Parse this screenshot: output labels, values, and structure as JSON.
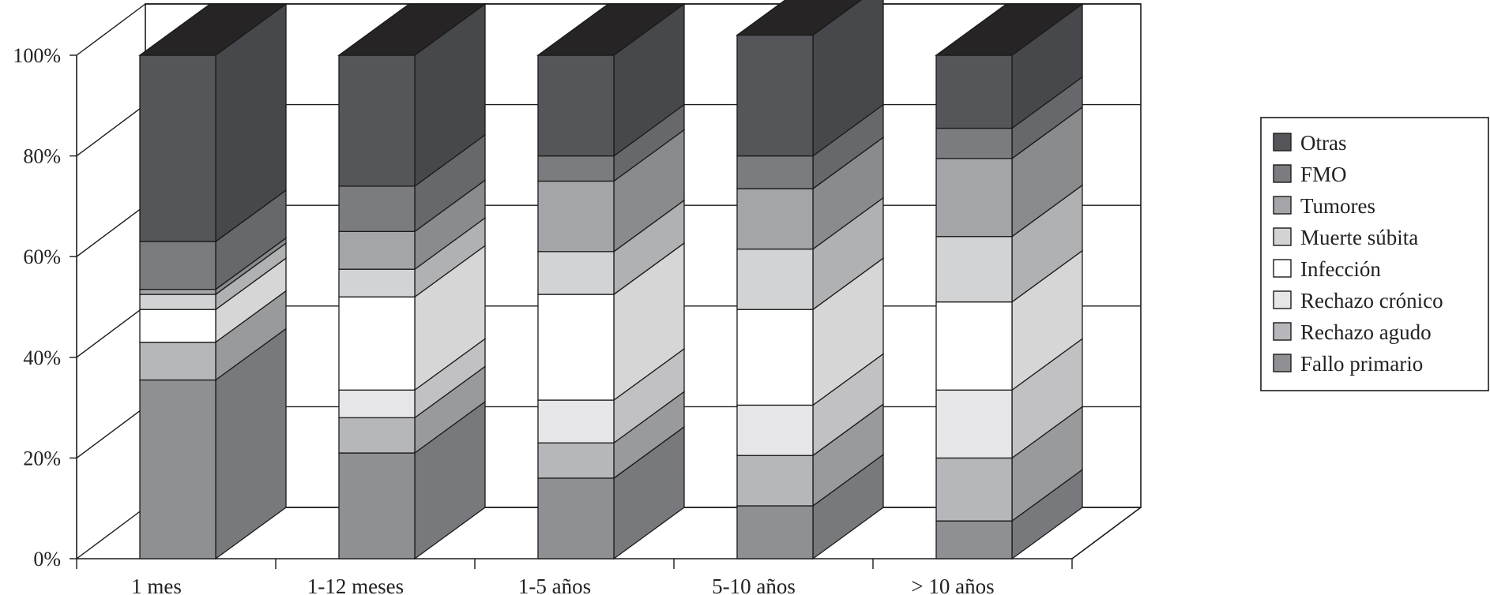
{
  "chart_data": {
    "type": "bar",
    "stacked": true,
    "three_d": true,
    "categories": [
      "1 mes",
      "1-12 meses",
      "1-5 años",
      "5-10 años",
      "> 10 años"
    ],
    "ylim": [
      0,
      100
    ],
    "yticks": [
      0,
      20,
      40,
      60,
      80,
      100
    ],
    "ytick_labels": [
      "0%",
      "20%",
      "40%",
      "60%",
      "80%",
      "100%"
    ],
    "grid": true,
    "legend_position": "right",
    "series": [
      {
        "name": "Fallo primario",
        "color": "#8f9094",
        "values": [
          35.5,
          21,
          16,
          10.5,
          7.5
        ]
      },
      {
        "name": "Rechazo agudo",
        "color": "#b6b7ba",
        "values": [
          7.5,
          7,
          7,
          10,
          12.5
        ]
      },
      {
        "name": "Rechazo crónico",
        "color": "#e6e6e8",
        "values": [
          0,
          5.5,
          8.5,
          10,
          13.5
        ]
      },
      {
        "name": "Infección",
        "color": "#ffffff",
        "values": [
          6.5,
          18.5,
          21,
          19,
          17.5
        ]
      },
      {
        "name": "Muerte súbita",
        "color": "#d2d3d5",
        "values": [
          3,
          5.5,
          8.5,
          12,
          13
        ]
      },
      {
        "name": "Tumores",
        "color": "#a4a5a8",
        "values": [
          1,
          7.5,
          14,
          12,
          15.5
        ]
      },
      {
        "name": "FMO",
        "color": "#7b7c80",
        "values": [
          9.5,
          9,
          5,
          6.5,
          6
        ]
      },
      {
        "name": "Otras",
        "color": "#55565a",
        "values": [
          37,
          26,
          20,
          24,
          14.5
        ]
      }
    ]
  }
}
